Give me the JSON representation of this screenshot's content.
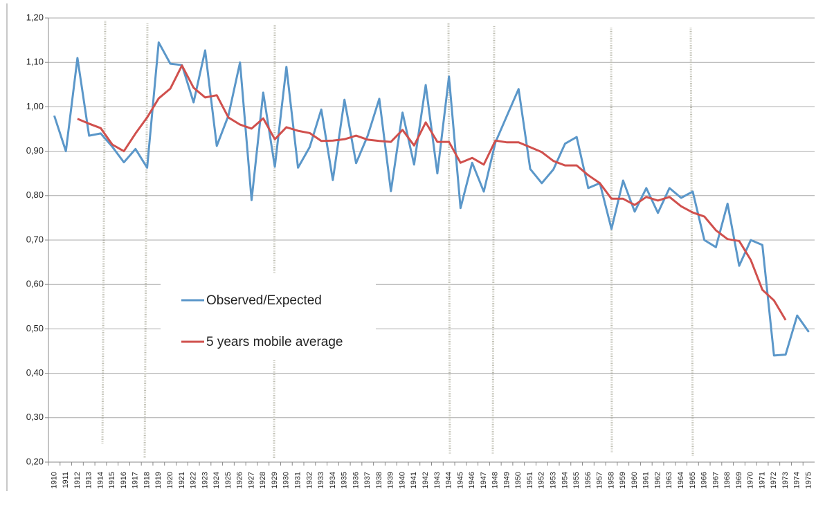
{
  "chart_data": {
    "type": "line",
    "categories": [
      "1910",
      "1911",
      "1912",
      "1913",
      "1914",
      "1915",
      "1916",
      "1917",
      "1918",
      "1919",
      "1920",
      "1921",
      "1922",
      "1923",
      "1924",
      "1925",
      "1926",
      "1927",
      "1928",
      "1929",
      "1930",
      "1931",
      "1932",
      "1933",
      "1934",
      "1935",
      "1936",
      "1937",
      "1938",
      "1939",
      "1940",
      "1941",
      "1942",
      "1943",
      "1944",
      "1945",
      "1946",
      "1947",
      "1948",
      "1949",
      "1950",
      "1951",
      "1952",
      "1953",
      "1954",
      "1955",
      "1956",
      "1957",
      "1958",
      "1959",
      "1960",
      "1961",
      "1962",
      "1963",
      "1964",
      "1965",
      "1966",
      "1967",
      "1968",
      "1969",
      "1970",
      "1971",
      "1972",
      "1973",
      "1974",
      "1975"
    ],
    "series": [
      {
        "name": "Observed/Expected",
        "color": "#5b97c9",
        "values": [
          0.98,
          0.9,
          1.11,
          0.935,
          0.94,
          0.91,
          0.875,
          0.905,
          0.863,
          1.145,
          1.097,
          1.094,
          1.01,
          1.127,
          0.912,
          0.98,
          1.1,
          0.79,
          1.032,
          0.865,
          1.09,
          0.863,
          0.909,
          0.994,
          0.835,
          1.016,
          0.873,
          0.935,
          1.018,
          0.81,
          0.987,
          0.87,
          1.049,
          0.85,
          1.068,
          0.772,
          0.874,
          0.809,
          0.92,
          0.98,
          1.04,
          0.86,
          0.828,
          0.859,
          0.917,
          0.932,
          0.817,
          0.828,
          0.725,
          0.834,
          0.764,
          0.817,
          0.761,
          0.817,
          0.795,
          0.809,
          0.7,
          0.684,
          0.782,
          0.642,
          0.7,
          0.689,
          0.44,
          0.442,
          0.53,
          0.493
        ]
      },
      {
        "name": "5 years mobile average",
        "color": "#d0504d",
        "values": [
          null,
          null,
          0.973,
          0.962,
          0.952,
          0.915,
          0.9,
          0.94,
          0.976,
          1.019,
          1.041,
          1.093,
          1.043,
          1.021,
          1.026,
          0.976,
          0.96,
          0.951,
          0.974,
          0.927,
          0.954,
          0.946,
          0.941,
          0.923,
          0.924,
          0.927,
          0.935,
          0.926,
          0.923,
          0.921,
          0.948,
          0.913,
          0.965,
          0.921,
          0.921,
          0.874,
          0.885,
          0.87,
          0.924,
          0.92,
          0.92,
          0.909,
          0.898,
          0.878,
          0.868,
          0.868,
          0.846,
          0.828,
          0.793,
          0.793,
          0.779,
          0.797,
          0.789,
          0.797,
          0.776,
          0.762,
          0.753,
          0.722,
          0.702,
          0.698,
          0.655,
          0.588,
          0.564,
          0.52,
          null,
          null
        ]
      }
    ],
    "ylim": [
      0.2,
      1.2
    ],
    "yticks": [
      {
        "value": 0.2,
        "label": "0,20"
      },
      {
        "value": 0.3,
        "label": "0,30"
      },
      {
        "value": 0.4,
        "label": "0,40"
      },
      {
        "value": 0.5,
        "label": "0,50"
      },
      {
        "value": 0.6,
        "label": "0,60"
      },
      {
        "value": 0.7,
        "label": "0,70"
      },
      {
        "value": 0.8,
        "label": "0,80"
      },
      {
        "value": 0.9,
        "label": "0,90"
      },
      {
        "value": 1.0,
        "label": "1,00"
      },
      {
        "value": 1.1,
        "label": "1,10"
      },
      {
        "value": 1.2,
        "label": "1,20"
      }
    ],
    "grid": true
  }
}
